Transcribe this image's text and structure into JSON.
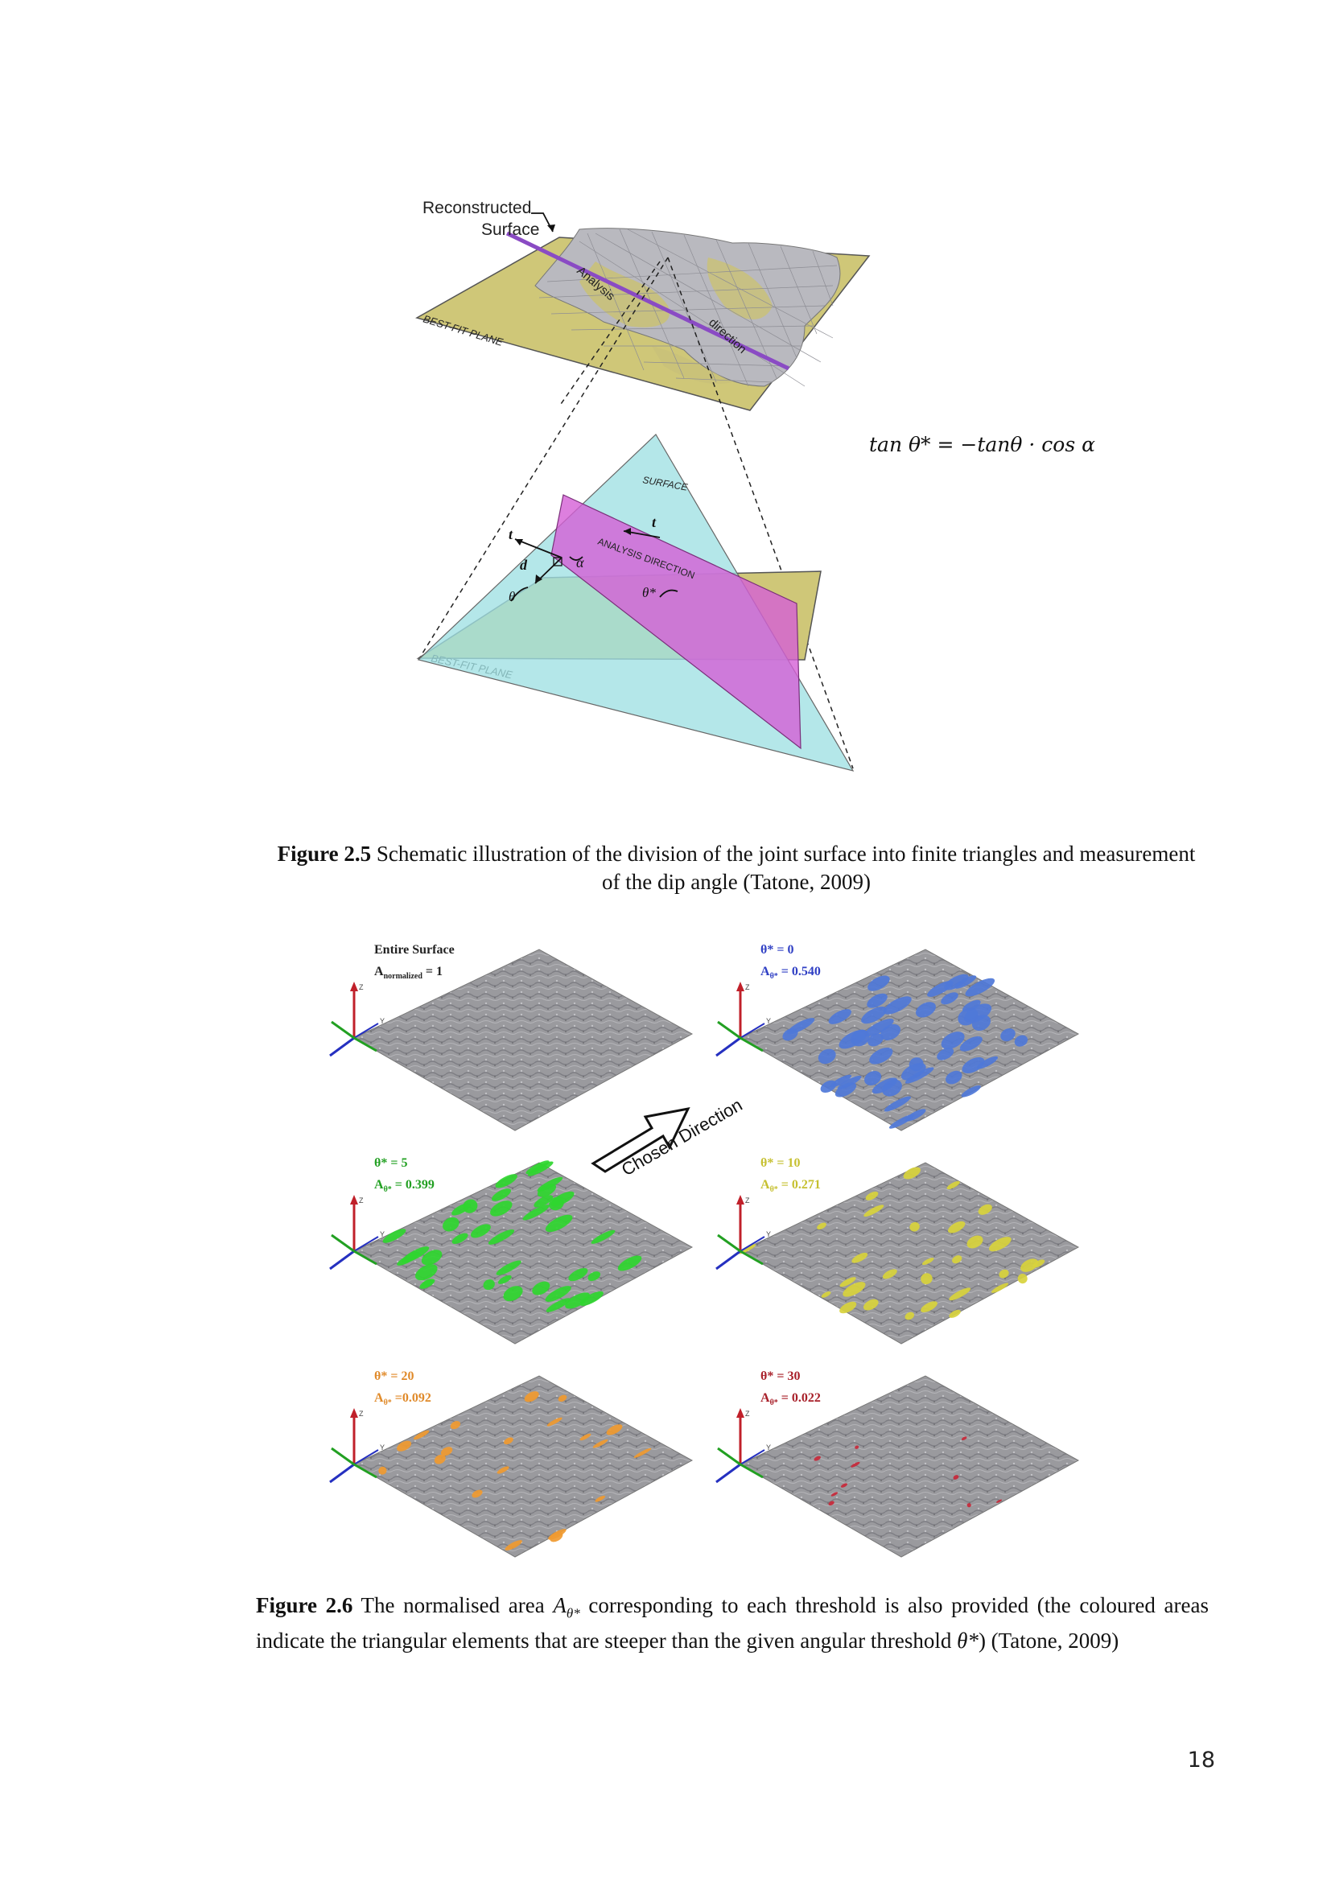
{
  "figure_1": {
    "callout": [
      "Reconstructed",
      "Surface"
    ],
    "analysis_label": "Analysis",
    "direction_label": "direction",
    "best_fit_plane_top": "BEST-FIT PLANE",
    "best_fit_plane_bottom": "BEST-FIT PLANE",
    "surface_label": "SURFACE",
    "analysis_direction_label": "ANALYSIS DIRECTION",
    "symbols": {
      "t1": "t",
      "t2": "t",
      "d": "d",
      "alpha": "α",
      "theta": "θ",
      "theta_star": "θ*"
    },
    "colors": {
      "plane": "#cfc778",
      "surface": "#9fe0e3",
      "analysis_plane": "#d45fd6",
      "direction_line": "#8a4bc4"
    }
  },
  "formula": "tan θ* = −tanθ · cos α",
  "caption_1": {
    "label": "Figure 2.5",
    "text": " Schematic illustration of the division of the joint surface into finite triangles and measurement of the dip angle (Tatone, 2009)"
  },
  "figure_2": {
    "arrow_label": "Chosen Direction",
    "panels": [
      {
        "line1": "Entire Surface",
        "line2_prefix": "A",
        "line2_sub": "normalized",
        "line2_value": " = 1",
        "color": "#222222",
        "fill": "none"
      },
      {
        "line1": "θ* = 0",
        "line2_prefix": "A",
        "line2_sub": "θ*",
        "line2_value": " = 0.540",
        "color": "#2f3fc4",
        "fill": "#4f78d8"
      },
      {
        "line1": "θ* = 5",
        "line2_prefix": "A",
        "line2_sub": "θ*",
        "line2_value": " = 0.399",
        "color": "#22a022",
        "fill": "#2fd62f"
      },
      {
        "line1": "θ* = 10",
        "line2_prefix": "A",
        "line2_sub": "θ*",
        "line2_value": " = 0.271",
        "color": "#c6c030",
        "fill": "#d8d23c"
      },
      {
        "line1": "θ* = 20",
        "line2_prefix": "A",
        "line2_sub": "θ*",
        "line2_value": " =0.092",
        "color": "#e08a2a",
        "fill": "#f09a30"
      },
      {
        "line1": "θ* = 30",
        "line2_prefix": "A",
        "line2_sub": "θ*",
        "line2_value": " = 0.022",
        "color": "#a8202a",
        "fill": "#c8283a"
      }
    ],
    "axis_labels": {
      "z": "Z",
      "y": "Y"
    }
  },
  "caption_2": {
    "label": "Figure 2.6",
    "text_a": " The normalised area ",
    "symbol": "A",
    "symbol_sub": "θ*",
    "text_b": " corresponding to each threshold is also provided (the coloured areas indicate the triangular elements that are steeper than the given angular threshold ",
    "text_c": "θ*",
    "text_d": ") (Tatone, 2009)"
  },
  "page_number": "18"
}
